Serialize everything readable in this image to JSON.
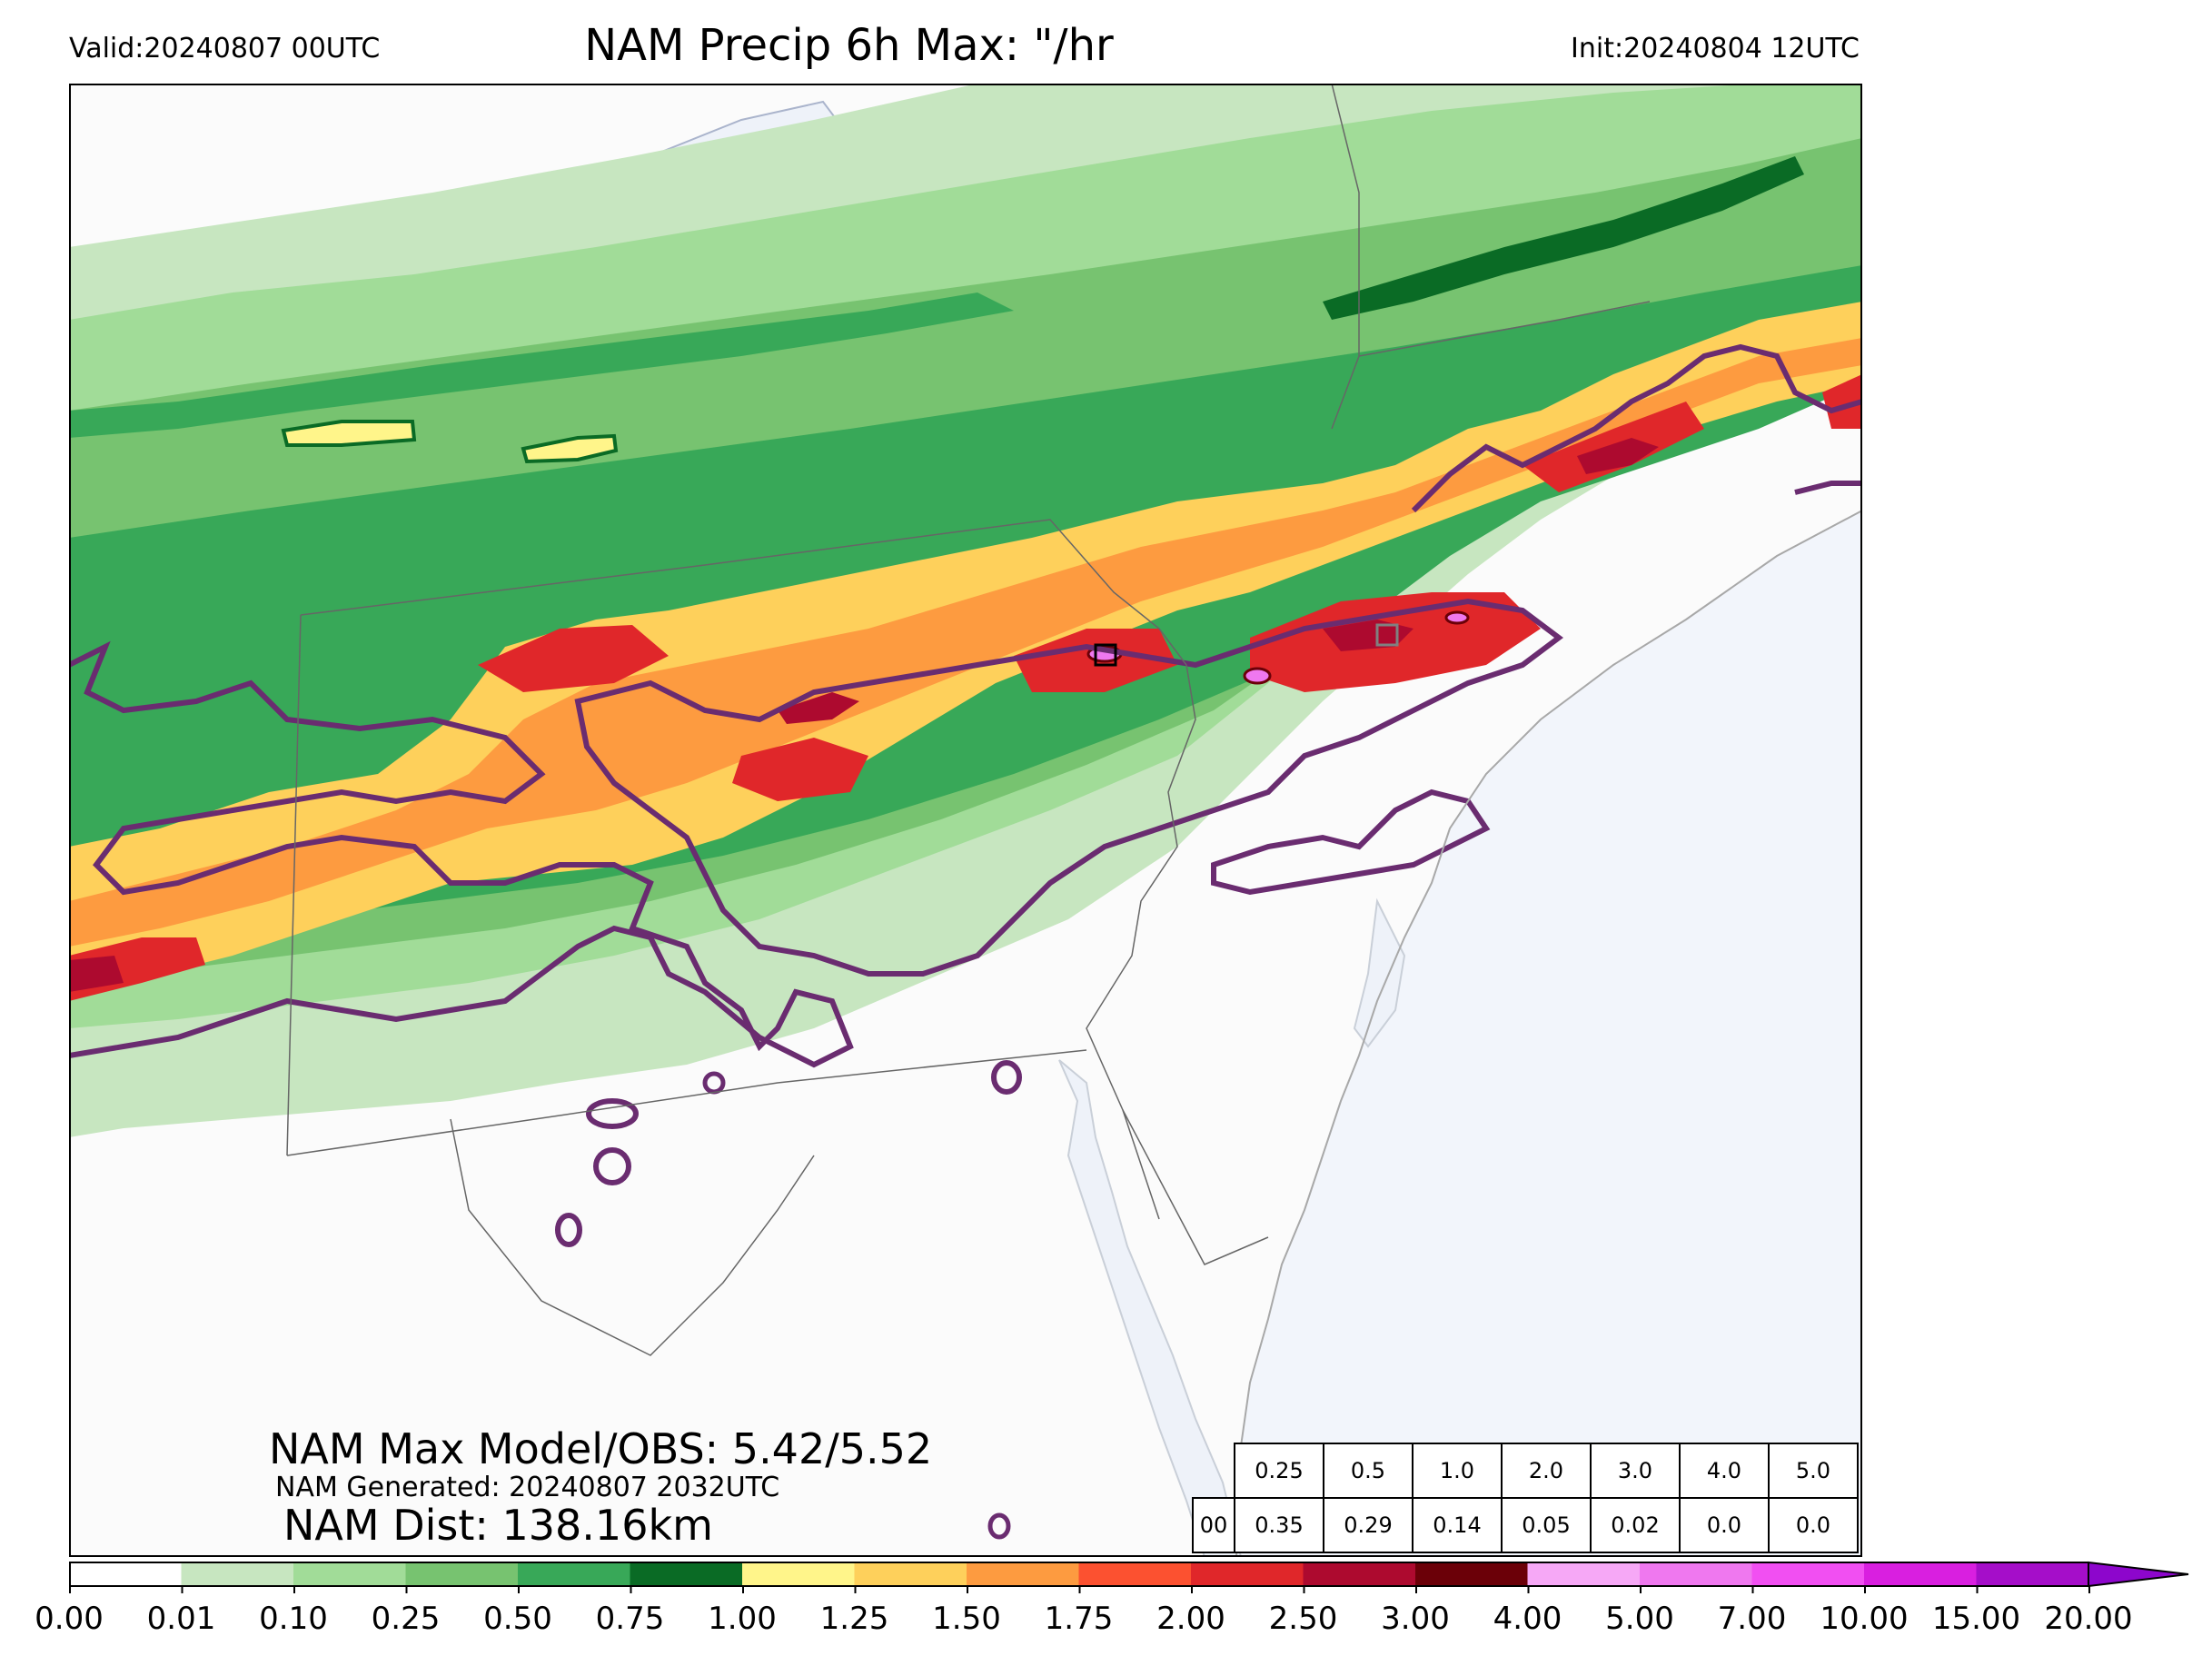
{
  "header": {
    "valid": "Valid:20240807 00UTC",
    "title": "NAM Precip 6h Max: \"/hr",
    "init": "Init:20240804 12UTC"
  },
  "annotations": {
    "max_model_obs": "NAM Max Model/OBS: 5.42/5.52",
    "generated": "NAM Generated: 20240807 2032UTC",
    "distance": "NAM Dist: 138.16km"
  },
  "stats_table": {
    "thresholds": [
      "0.25",
      "0.5",
      "1.0",
      "2.0",
      "3.0",
      "4.0",
      "5.0"
    ],
    "row_label": "00",
    "values": [
      "0.35",
      "0.29",
      "0.14",
      "0.05",
      "0.02",
      "0.0",
      "0.0"
    ]
  },
  "colorbar": {
    "ticks": [
      "0.00",
      "0.01",
      "0.10",
      "0.25",
      "0.50",
      "0.75",
      "1.00",
      "1.25",
      "1.50",
      "1.75",
      "2.00",
      "2.50",
      "3.00",
      "4.00",
      "5.00",
      "7.00",
      "10.00",
      "15.00",
      "20.00"
    ],
    "colors": [
      "#ffffff",
      "#c7e6c0",
      "#a1dc98",
      "#77c370",
      "#38a858",
      "#0a6b25",
      "#fff58a",
      "#fed05b",
      "#fd9b40",
      "#fc5130",
      "#e0272a",
      "#ad0a2f",
      "#6b0008",
      "#f6a8f6",
      "#ef78ef",
      "#f14ff2",
      "#d91fe0",
      "#a50ec9",
      "#8d06cc"
    ],
    "extend": "max"
  },
  "map": {
    "ocean_color": "#f2f5fb",
    "land_color": "#fbfbfb",
    "lake_color": "#eef2f9",
    "flash_flood_contour_color": "#6a2c70",
    "obs_marker_color": "#000000"
  }
}
